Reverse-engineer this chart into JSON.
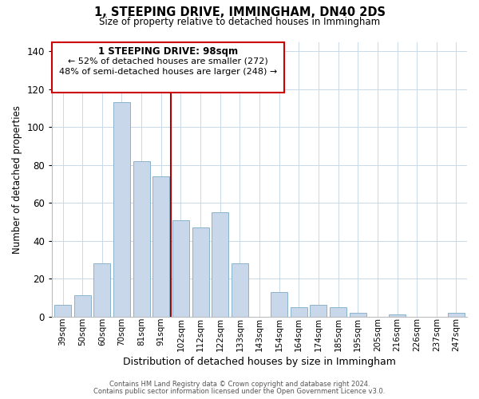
{
  "title": "1, STEEPING DRIVE, IMMINGHAM, DN40 2DS",
  "subtitle": "Size of property relative to detached houses in Immingham",
  "xlabel": "Distribution of detached houses by size in Immingham",
  "ylabel": "Number of detached properties",
  "bar_labels": [
    "39sqm",
    "50sqm",
    "60sqm",
    "70sqm",
    "81sqm",
    "91sqm",
    "102sqm",
    "112sqm",
    "122sqm",
    "133sqm",
    "143sqm",
    "154sqm",
    "164sqm",
    "174sqm",
    "185sqm",
    "195sqm",
    "205sqm",
    "216sqm",
    "226sqm",
    "237sqm",
    "247sqm"
  ],
  "bar_values": [
    6,
    11,
    28,
    113,
    82,
    74,
    51,
    47,
    55,
    28,
    0,
    13,
    5,
    6,
    5,
    2,
    0,
    1,
    0,
    0,
    2
  ],
  "bar_color": "#c8d8ea",
  "bar_edge_color": "#8ab4cc",
  "vline_index": 6,
  "vline_color": "#aa0000",
  "ylim": [
    0,
    145
  ],
  "yticks": [
    0,
    20,
    40,
    60,
    80,
    100,
    120,
    140
  ],
  "annotation_title": "1 STEEPING DRIVE: 98sqm",
  "annotation_line1": "← 52% of detached houses are smaller (272)",
  "annotation_line2": "48% of semi-detached houses are larger (248) →",
  "annotation_box_color": "#ffffff",
  "annotation_box_edge": "#cc0000",
  "footer1": "Contains HM Land Registry data © Crown copyright and database right 2024.",
  "footer2": "Contains public sector information licensed under the Open Government Licence v3.0.",
  "background_color": "#ffffff",
  "grid_color": "#c8d8e8"
}
